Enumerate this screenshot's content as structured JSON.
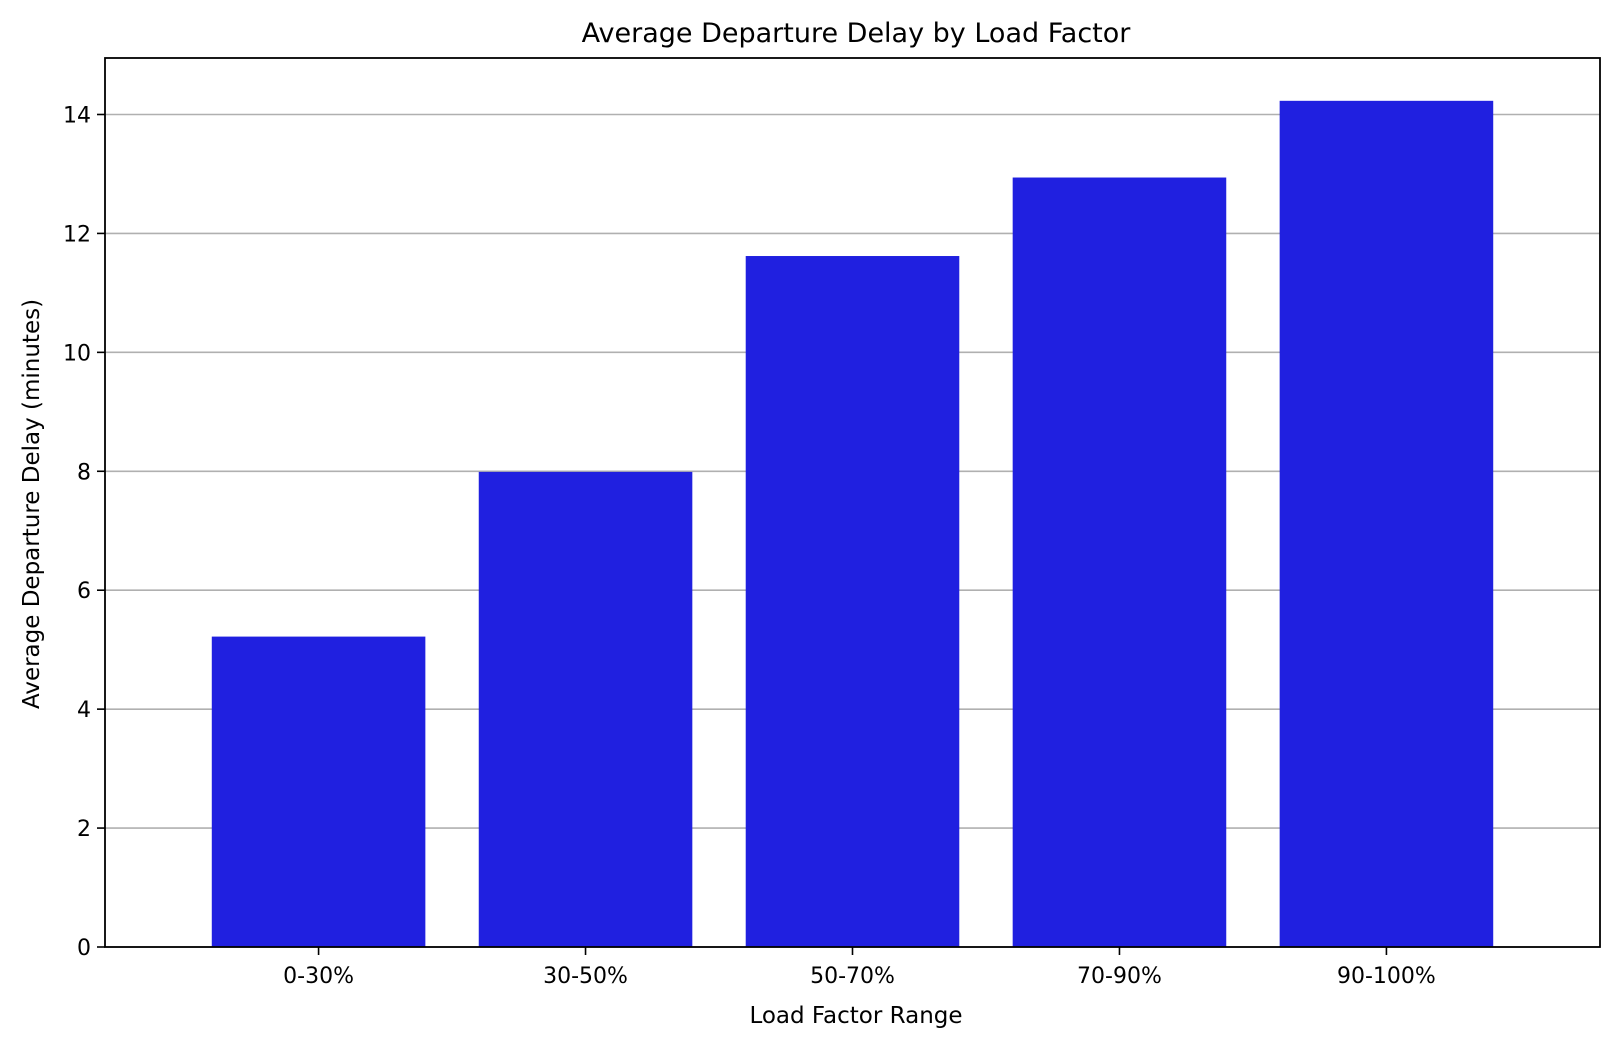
{
  "chart_data": {
    "type": "bar",
    "title": "Average Departure Delay by Load Factor",
    "xlabel": "Load Factor Range",
    "ylabel": "Average Departure Delay (minutes)",
    "categories": [
      "0-30%",
      "30-50%",
      "50-70%",
      "70-90%",
      "90-100%"
    ],
    "values": [
      5.22,
      7.99,
      11.62,
      12.94,
      14.23
    ],
    "ylim": [
      0,
      14.95
    ],
    "yticks": [
      0,
      2,
      4,
      6,
      8,
      10,
      12,
      14
    ],
    "grid": "y-axis major",
    "legend": "none",
    "colors": {
      "bar": "#2020e0",
      "grid": "#b0b0b0",
      "axis": "#000000",
      "background": "#ffffff"
    }
  }
}
